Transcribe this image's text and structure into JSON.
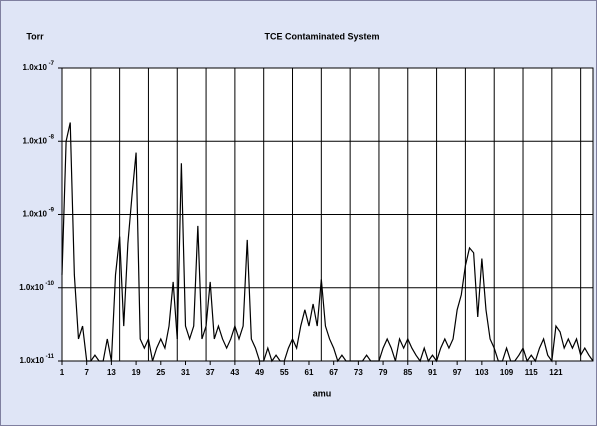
{
  "chart_data": {
    "type": "line",
    "title": "TCE Contaminated System",
    "ylabel": "Torr",
    "xlabel": "amu",
    "log_y": true,
    "grid": true,
    "color": "#000000",
    "xlim": [
      1,
      130
    ],
    "xticks": [
      1,
      7,
      13,
      19,
      25,
      31,
      37,
      43,
      49,
      55,
      61,
      67,
      73,
      79,
      85,
      91,
      97,
      103,
      109,
      115,
      121
    ],
    "xgrid": [
      8,
      15,
      22,
      29,
      36,
      43,
      50,
      57,
      64,
      71,
      78,
      85,
      92,
      99,
      106,
      113,
      120,
      127
    ],
    "ylim": [
      1e-11,
      1e-07
    ],
    "yticks": [
      {
        "value": 1e-11,
        "label": "1.0x10-11"
      },
      {
        "value": 1e-10,
        "label": "1.0x10-10"
      },
      {
        "value": 1e-09,
        "label": "1.0x10-9"
      },
      {
        "value": 1e-08,
        "label": "1.0x10-8"
      },
      {
        "value": 1e-07,
        "label": "1.0x10-7"
      }
    ],
    "x": [
      1,
      2,
      3,
      4,
      5,
      6,
      7,
      8,
      9,
      10,
      11,
      12,
      13,
      14,
      15,
      16,
      17,
      18,
      19,
      20,
      21,
      22,
      23,
      24,
      25,
      26,
      27,
      28,
      29,
      30,
      31,
      32,
      33,
      34,
      35,
      36,
      37,
      38,
      39,
      40,
      41,
      42,
      43,
      44,
      45,
      46,
      47,
      48,
      49,
      50,
      51,
      52,
      53,
      54,
      55,
      56,
      57,
      58,
      59,
      60,
      61,
      62,
      63,
      64,
      65,
      66,
      67,
      68,
      69,
      70,
      71,
      72,
      73,
      74,
      75,
      76,
      77,
      78,
      79,
      80,
      81,
      82,
      83,
      84,
      85,
      86,
      87,
      88,
      89,
      90,
      91,
      92,
      93,
      94,
      95,
      96,
      97,
      98,
      99,
      100,
      101,
      102,
      103,
      104,
      105,
      106,
      107,
      108,
      109,
      110,
      111,
      112,
      113,
      114,
      115,
      116,
      117,
      118,
      119,
      120,
      121,
      122,
      123,
      124,
      125,
      126,
      127,
      128,
      129,
      130
    ],
    "values": [
      1.5e-10,
      1e-08,
      1.8e-08,
      1.5e-10,
      2e-11,
      3e-11,
      1e-11,
      1e-11,
      1.2e-11,
      1e-11,
      1e-11,
      2e-11,
      1e-11,
      1.5e-10,
      5e-10,
      3e-11,
      4e-10,
      1.8e-09,
      7e-09,
      2e-11,
      1.5e-11,
      2e-11,
      1e-11,
      1.5e-11,
      2e-11,
      1.5e-11,
      3e-11,
      1.2e-10,
      2e-11,
      5e-09,
      3e-11,
      2e-11,
      3e-11,
      7e-10,
      2e-11,
      3e-11,
      1.2e-10,
      2e-11,
      3e-11,
      2e-11,
      1.5e-11,
      2e-11,
      3e-11,
      2e-11,
      3e-11,
      4.5e-10,
      2e-11,
      1.5e-11,
      1e-11,
      1e-11,
      1.5e-11,
      1e-11,
      1.2e-11,
      1e-11,
      1e-11,
      1.5e-11,
      2e-11,
      1.5e-11,
      3e-11,
      5e-11,
      3e-11,
      6e-11,
      3e-11,
      1.3e-10,
      3e-11,
      2e-11,
      1.5e-11,
      1e-11,
      1.2e-11,
      1e-11,
      1e-11,
      1e-11,
      1e-11,
      1e-11,
      1.2e-11,
      1e-11,
      1e-11,
      1e-11,
      1.5e-11,
      2e-11,
      1.5e-11,
      1e-11,
      2e-11,
      1.5e-11,
      2e-11,
      1.5e-11,
      1.2e-11,
      1e-11,
      1.5e-11,
      1e-11,
      1.2e-11,
      1e-11,
      1.5e-11,
      2e-11,
      1.5e-11,
      2e-11,
      5e-11,
      8e-11,
      2e-10,
      3.5e-10,
      3e-10,
      4e-11,
      2.5e-10,
      5e-11,
      2e-11,
      1.5e-11,
      1e-11,
      1e-11,
      1.5e-11,
      1e-11,
      1e-11,
      1.2e-11,
      1.5e-11,
      1e-11,
      1.2e-11,
      1e-11,
      1.5e-11,
      2e-11,
      1.2e-11,
      1e-11,
      3e-11,
      2.5e-11,
      1.5e-11,
      2e-11,
      1.5e-11,
      2e-11,
      1.2e-11,
      1.5e-11,
      1.2e-11,
      1e-11
    ]
  }
}
